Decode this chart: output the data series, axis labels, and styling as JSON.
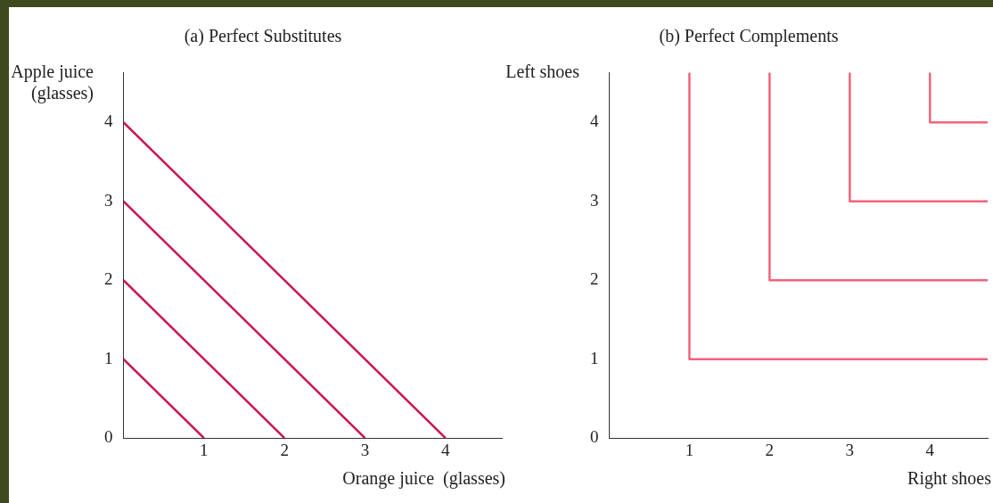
{
  "chart_data": [
    {
      "type": "line",
      "title": "(a) Perfect Substitutes",
      "xlabel": "Orange juice  (glasses)",
      "ylabel": "Apple juice (glasses)",
      "xlim": [
        0,
        4.7
      ],
      "ylim": [
        0,
        4.63
      ],
      "xticks": [
        1,
        2,
        3,
        4
      ],
      "yticks": [
        0,
        1,
        2,
        3,
        4
      ],
      "series": [
        {
          "color": "#c8174f",
          "x": [
            0,
            1
          ],
          "values": [
            1,
            0
          ]
        },
        {
          "color": "#c8174f",
          "x": [
            0,
            2
          ],
          "values": [
            2,
            0
          ]
        },
        {
          "color": "#c8174f",
          "x": [
            0,
            3
          ],
          "values": [
            3,
            0
          ]
        },
        {
          "color": "#c8174f",
          "x": [
            0,
            4
          ],
          "values": [
            4,
            0
          ]
        }
      ]
    },
    {
      "type": "line",
      "title": "(b) Perfect Complements",
      "xlabel": "Right shoes",
      "ylabel": "Left shoes",
      "xlim": [
        0,
        4.72
      ],
      "ylim": [
        0,
        4.63
      ],
      "xticks": [
        1,
        2,
        3,
        4
      ],
      "yticks": [
        0,
        1,
        2,
        3,
        4
      ],
      "series": [
        {
          "color": "#f0647c",
          "x": [
            1,
            1,
            4.72
          ],
          "values": [
            4.63,
            1,
            1
          ]
        },
        {
          "color": "#f0647c",
          "x": [
            2,
            2,
            4.72
          ],
          "values": [
            4.63,
            2,
            2
          ]
        },
        {
          "color": "#f0647c",
          "x": [
            3,
            3,
            4.72
          ],
          "values": [
            4.63,
            3,
            3
          ]
        },
        {
          "color": "#f0647c",
          "x": [
            4,
            4,
            4.72
          ],
          "values": [
            4.63,
            4,
            4
          ]
        }
      ]
    }
  ]
}
